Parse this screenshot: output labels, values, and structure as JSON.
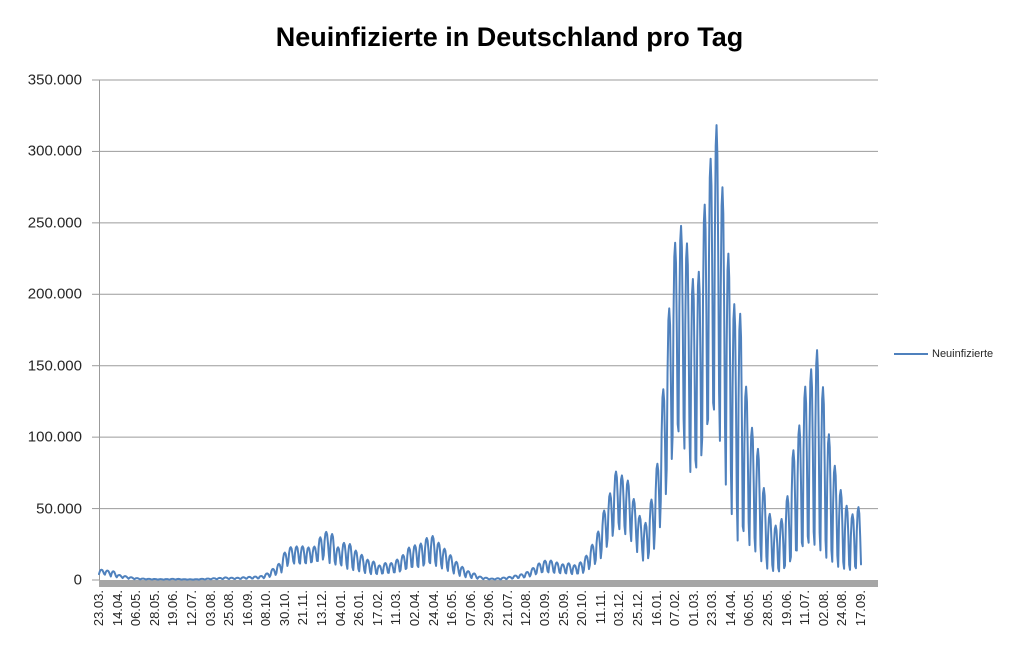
{
  "title": "Neuinfizierte in Deutschland pro Tag",
  "legend": {
    "series_label": "Neuinfizierte"
  },
  "colors": {
    "series": "#4F81BD",
    "gridline": "#9B9B9B",
    "axis": "#9B9B9B",
    "zero_band": "#A6A6A6",
    "text": "#262626",
    "background": "#FFFFFF"
  },
  "chart_data": {
    "type": "line",
    "title": "Neuinfizierte in Deutschland pro Tag",
    "series_name": "Neuinfizierte",
    "xlabel": "",
    "ylabel": "",
    "ylim": [
      0,
      350000
    ],
    "grid": "horizontal",
    "legend_position": "right",
    "y_tick_labels": [
      "350.000",
      "300.000",
      "250.000",
      "200.000",
      "150.000",
      "100.000",
      "50.000",
      "0"
    ],
    "y_tick_values": [
      350000,
      300000,
      250000,
      200000,
      150000,
      100000,
      50000,
      0
    ],
    "x_tick_labels": [
      "23.03.",
      "14.04.",
      "06.05.",
      "28.05.",
      "19.06.",
      "12.07.",
      "03.08.",
      "25.08.",
      "16.09.",
      "08.10.",
      "30.10.",
      "21.11.",
      "13.12.",
      "04.01.",
      "26.01.",
      "17.02.",
      "11.03.",
      "02.04.",
      "24.04.",
      "16.05.",
      "07.06.",
      "29.06.",
      "21.07.",
      "12.08.",
      "03.09.",
      "25.09.",
      "20.10.",
      "11.11.",
      "03.12.",
      "25.12.",
      "16.01.",
      "07.02.",
      "01.03.",
      "23.03.",
      "14.04.",
      "06.05.",
      "28.05.",
      "19.06.",
      "11.07.",
      "02.08.",
      "24.08.",
      "17.09."
    ],
    "x_tick_every_days": 22,
    "n_days": 903,
    "weekday_shape": [
      0.04,
      0.62,
      0.93,
      1.0,
      0.9,
      0.55,
      0.1
    ],
    "weekly_envelope": {
      "unit": "daily new infections, [weekly peak, weekly trough]",
      "weeks": [
        [
          7200,
          4000
        ],
        [
          6600,
          3600
        ],
        [
          6100,
          2300
        ],
        [
          3500,
          1800
        ],
        [
          2700,
          1300
        ],
        [
          1900,
          800
        ],
        [
          1300,
          500
        ],
        [
          1000,
          400
        ],
        [
          800,
          350
        ],
        [
          700,
          300
        ],
        [
          600,
          250
        ],
        [
          650,
          250
        ],
        [
          800,
          300
        ],
        [
          750,
          280
        ],
        [
          550,
          250
        ],
        [
          500,
          220
        ],
        [
          550,
          250
        ],
        [
          800,
          350
        ],
        [
          1000,
          450
        ],
        [
          1250,
          500
        ],
        [
          1450,
          600
        ],
        [
          1800,
          750
        ],
        [
          1600,
          650
        ],
        [
          1550,
          650
        ],
        [
          1900,
          800
        ],
        [
          2200,
          900
        ],
        [
          2400,
          950
        ],
        [
          2800,
          1100
        ],
        [
          4600,
          1900
        ],
        [
          7800,
          3100
        ],
        [
          11300,
          4600
        ],
        [
          19200,
          8800
        ],
        [
          23000,
          12000
        ],
        [
          23500,
          11000
        ],
        [
          23600,
          11000
        ],
        [
          22800,
          11200
        ],
        [
          23400,
          12300
        ],
        [
          29900,
          12600
        ],
        [
          33700,
          16600
        ],
        [
          32200,
          11000
        ],
        [
          22900,
          10300
        ],
        [
          26000,
          9500
        ],
        [
          25200,
          7100
        ],
        [
          20600,
          6400
        ],
        [
          17600,
          5600
        ],
        [
          14200,
          4500
        ],
        [
          12900,
          3800
        ],
        [
          10200,
          3900
        ],
        [
          11900,
          4400
        ],
        [
          11900,
          4700
        ],
        [
          14300,
          5000
        ],
        [
          17500,
          6600
        ],
        [
          22700,
          7700
        ],
        [
          24300,
          8500
        ],
        [
          25500,
          8400
        ],
        [
          29400,
          10800
        ],
        [
          30800,
          11000
        ],
        [
          26100,
          9200
        ],
        [
          21900,
          7500
        ],
        [
          17400,
          5900
        ],
        [
          12700,
          4200
        ],
        [
          9200,
          2600
        ],
        [
          6200,
          1800
        ],
        [
          4600,
          1200
        ],
        [
          2400,
          800
        ],
        [
          1600,
          500
        ],
        [
          1000,
          350
        ],
        [
          1200,
          350
        ],
        [
          1700,
          500
        ],
        [
          2200,
          800
        ],
        [
          3100,
          1200
        ],
        [
          4000,
          1500
        ],
        [
          5600,
          2100
        ],
        [
          8400,
          3500
        ],
        [
          11600,
          4700
        ],
        [
          13500,
          5400
        ],
        [
          13600,
          5000
        ],
        [
          12300,
          4700
        ],
        [
          11000,
          4500
        ],
        [
          11700,
          4300
        ],
        [
          10400,
          3900
        ],
        [
          12400,
          4200
        ],
        [
          17000,
          6600
        ],
        [
          24700,
          9700
        ],
        [
          33900,
          13200
        ],
        [
          48600,
          20400
        ],
        [
          60700,
          27600
        ],
        [
          75900,
          36200
        ],
        [
          73200,
          34000
        ],
        [
          69600,
          30500
        ],
        [
          56700,
          26000
        ],
        [
          44900,
          18500
        ],
        [
          40000,
          12500
        ],
        [
          56300,
          18000
        ],
        [
          81400,
          32000
        ],
        [
          133500,
          52000
        ],
        [
          190100,
          73000
        ],
        [
          236100,
          95000
        ],
        [
          247900,
          98000
        ],
        [
          235600,
          86000
        ],
        [
          210700,
          70000
        ],
        [
          215800,
          73000
        ],
        [
          262800,
          92000
        ],
        [
          294900,
          105000
        ],
        [
          318400,
          111000
        ],
        [
          274900,
          90000
        ],
        [
          228500,
          60000
        ],
        [
          193100,
          40000
        ],
        [
          186400,
          21000
        ],
        [
          135400,
          30000
        ],
        [
          106600,
          21000
        ],
        [
          91800,
          17000
        ],
        [
          64400,
          11000
        ],
        [
          46300,
          6400
        ],
        [
          38100,
          5000
        ],
        [
          42700,
          4500
        ],
        [
          58700,
          8000
        ],
        [
          90800,
          13000
        ],
        [
          108200,
          17000
        ],
        [
          135400,
          19000
        ],
        [
          147500,
          21000
        ],
        [
          160900,
          19000
        ],
        [
          135000,
          16000
        ],
        [
          102000,
          12000
        ],
        [
          80000,
          10000
        ],
        [
          63000,
          7000
        ],
        [
          52000,
          6000
        ],
        [
          46000,
          5500
        ],
        [
          51000,
          6500
        ],
        [
          48000,
          6000
        ]
      ]
    }
  }
}
